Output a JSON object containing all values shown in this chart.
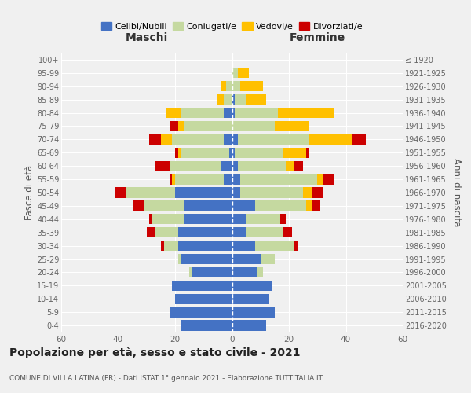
{
  "age_groups": [
    "0-4",
    "5-9",
    "10-14",
    "15-19",
    "20-24",
    "25-29",
    "30-34",
    "35-39",
    "40-44",
    "45-49",
    "50-54",
    "55-59",
    "60-64",
    "65-69",
    "70-74",
    "75-79",
    "80-84",
    "85-89",
    "90-94",
    "95-99",
    "100+"
  ],
  "birth_years": [
    "2016-2020",
    "2011-2015",
    "2006-2010",
    "2001-2005",
    "1996-2000",
    "1991-1995",
    "1986-1990",
    "1981-1985",
    "1976-1980",
    "1971-1975",
    "1966-1970",
    "1961-1965",
    "1956-1960",
    "1951-1955",
    "1946-1950",
    "1941-1945",
    "1936-1940",
    "1931-1935",
    "1926-1930",
    "1921-1925",
    "≤ 1920"
  ],
  "maschi": {
    "celibi": [
      18,
      22,
      20,
      21,
      14,
      18,
      19,
      19,
      17,
      17,
      20,
      3,
      4,
      1,
      3,
      0,
      3,
      0,
      0,
      0,
      0
    ],
    "coniugati": [
      0,
      0,
      0,
      0,
      1,
      1,
      5,
      8,
      11,
      14,
      17,
      17,
      18,
      17,
      18,
      17,
      15,
      3,
      2,
      0,
      0
    ],
    "vedovi": [
      0,
      0,
      0,
      0,
      0,
      0,
      0,
      0,
      0,
      0,
      0,
      1,
      0,
      1,
      4,
      2,
      5,
      2,
      2,
      0,
      0
    ],
    "divorziati": [
      0,
      0,
      0,
      0,
      0,
      0,
      1,
      3,
      1,
      4,
      4,
      1,
      5,
      1,
      4,
      3,
      0,
      0,
      0,
      0,
      0
    ]
  },
  "femmine": {
    "nubili": [
      12,
      15,
      13,
      14,
      9,
      10,
      8,
      5,
      5,
      8,
      3,
      3,
      2,
      1,
      2,
      0,
      1,
      1,
      0,
      0,
      0
    ],
    "coniugate": [
      0,
      0,
      0,
      0,
      2,
      5,
      14,
      13,
      12,
      18,
      22,
      27,
      17,
      17,
      25,
      15,
      15,
      4,
      3,
      2,
      0
    ],
    "vedove": [
      0,
      0,
      0,
      0,
      0,
      0,
      0,
      0,
      0,
      2,
      3,
      2,
      3,
      8,
      15,
      12,
      20,
      7,
      8,
      4,
      0
    ],
    "divorziate": [
      0,
      0,
      0,
      0,
      0,
      0,
      1,
      3,
      2,
      3,
      4,
      4,
      3,
      1,
      5,
      0,
      0,
      0,
      0,
      0,
      0
    ]
  },
  "colors": {
    "celibi_nubili": "#4472c4",
    "coniugati": "#c5d9a0",
    "vedovi": "#ffc000",
    "divorziati": "#cc0000"
  },
  "xlim": 60,
  "title": "Popolazione per età, sesso e stato civile - 2021",
  "subtitle": "COMUNE DI VILLA LATINA (FR) - Dati ISTAT 1° gennaio 2021 - Elaborazione TUTTITALIA.IT",
  "ylabel_left": "Fasce di età",
  "ylabel_right": "Anni di nascita",
  "xlabel_left": "Maschi",
  "xlabel_right": "Femmine",
  "bg_color": "#f0f0f0"
}
